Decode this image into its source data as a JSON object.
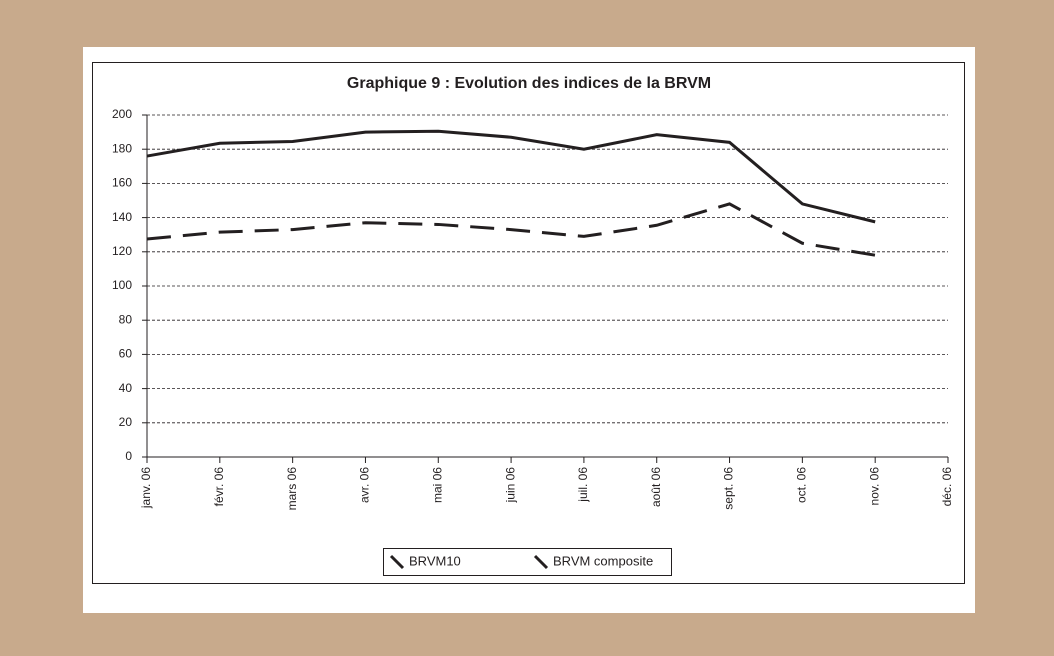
{
  "chart_data": {
    "type": "line",
    "title": "Graphique 9 : Evolution des indices de la BRVM",
    "categories": [
      "janv. 06",
      "févr. 06",
      "mars 06",
      "avr. 06",
      "mai 06",
      "juin 06",
      "juil. 06",
      "août 06",
      "sept. 06",
      "oct. 06",
      "nov. 06",
      "déc. 06"
    ],
    "series": [
      {
        "name": "BRVM10",
        "color": "#231f20",
        "dash": "solid",
        "values": [
          176,
          183.5,
          184.5,
          190,
          190.5,
          187,
          180,
          188.5,
          184,
          148,
          137.5,
          null
        ]
      },
      {
        "name": "BRVM composite",
        "color": "#231f20",
        "dash": "dashed",
        "values": [
          127.5,
          131.5,
          133,
          137,
          136,
          133,
          129,
          135.5,
          148,
          125,
          118,
          null
        ]
      }
    ],
    "ylim": [
      0,
      200
    ],
    "yticks": [
      0,
      20,
      40,
      60,
      80,
      100,
      120,
      140,
      160,
      180,
      200
    ],
    "grid": true,
    "legend": "bottom"
  }
}
